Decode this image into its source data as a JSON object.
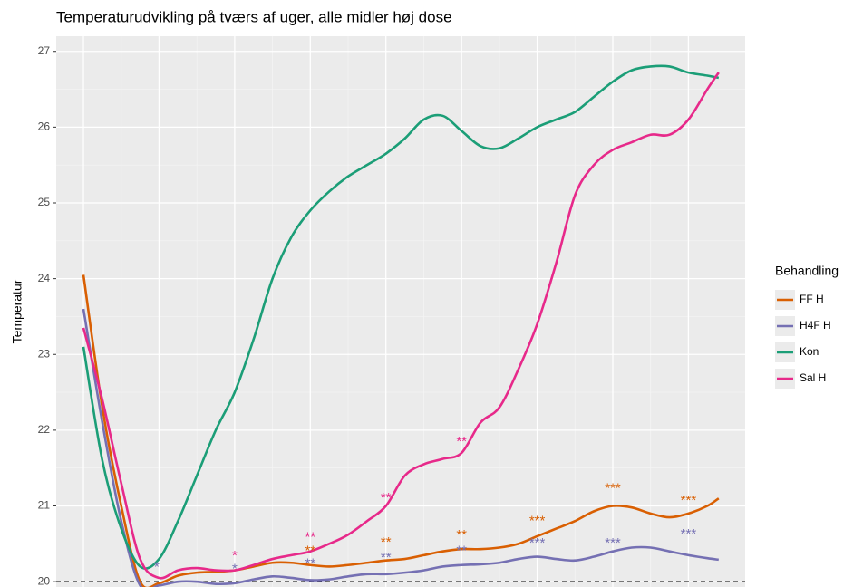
{
  "chart_data": {
    "type": "line",
    "title": "Temperaturudvikling på tværs af uger, alle midler høj dose",
    "ylabel": "Temperatur",
    "legend_title": "Behandling",
    "legend_position": "right",
    "grid": true,
    "hline": 20,
    "x": [
      0,
      0.25,
      0.5,
      0.75,
      1,
      1.25,
      1.5,
      1.75,
      2,
      2.25,
      2.5,
      2.75,
      3,
      3.25,
      3.5,
      3.75,
      4,
      4.25,
      4.5,
      4.75,
      5,
      5.25,
      5.5,
      5.75,
      6,
      6.25,
      6.5,
      6.75,
      7,
      7.25,
      7.5,
      7.75,
      8,
      8.25,
      8.4
    ],
    "xlim": [
      -0.36,
      8.75
    ],
    "xticks": [
      0,
      1,
      2,
      3,
      4,
      5,
      6,
      7,
      8
    ],
    "ylim": [
      19.93,
      27.2
    ],
    "yticks": [
      20,
      21,
      22,
      23,
      24,
      25,
      26,
      27
    ],
    "series": [
      {
        "name": "FF H",
        "color": "#d95f02",
        "values": [
          24.05,
          22.3,
          21.0,
          20.0,
          19.98,
          20.08,
          20.12,
          20.13,
          20.15,
          20.2,
          20.25,
          20.25,
          20.22,
          20.2,
          20.22,
          20.25,
          20.28,
          20.3,
          20.35,
          20.4,
          20.43,
          20.43,
          20.45,
          20.5,
          20.6,
          20.7,
          20.8,
          20.93,
          21.0,
          20.98,
          20.9,
          20.85,
          20.9,
          21.0,
          21.1
        ]
      },
      {
        "name": "H4F H",
        "color": "#7570b3",
        "values": [
          23.6,
          22.1,
          20.8,
          19.95,
          19.95,
          20.0,
          20.0,
          19.97,
          19.98,
          20.03,
          20.07,
          20.05,
          20.02,
          20.03,
          20.07,
          20.1,
          20.1,
          20.12,
          20.15,
          20.2,
          20.22,
          20.23,
          20.25,
          20.3,
          20.33,
          20.3,
          20.28,
          20.33,
          20.4,
          20.45,
          20.45,
          20.4,
          20.35,
          20.31,
          20.29
        ]
      },
      {
        "name": "Kon",
        "color": "#1b9e77",
        "values": [
          23.1,
          21.6,
          20.7,
          20.2,
          20.3,
          20.8,
          21.4,
          22.0,
          22.5,
          23.2,
          24.0,
          24.55,
          24.9,
          25.15,
          25.35,
          25.5,
          25.65,
          25.85,
          26.1,
          26.15,
          25.95,
          25.75,
          25.72,
          25.85,
          26.0,
          26.1,
          26.2,
          26.4,
          26.6,
          26.75,
          26.8,
          26.8,
          26.72,
          26.68,
          26.65
        ]
      },
      {
        "name": "Sal H",
        "color": "#e7298a",
        "values": [
          23.35,
          22.4,
          21.3,
          20.3,
          20.05,
          20.15,
          20.18,
          20.15,
          20.15,
          20.22,
          20.3,
          20.35,
          20.4,
          20.5,
          20.62,
          20.8,
          21.0,
          21.4,
          21.55,
          21.62,
          21.7,
          22.1,
          22.3,
          22.8,
          23.4,
          24.2,
          25.1,
          25.5,
          25.7,
          25.8,
          25.9,
          25.9,
          26.1,
          26.5,
          26.72
        ]
      }
    ],
    "annotations": [
      {
        "text": "*",
        "x": 0.97,
        "y": 20.22,
        "color": "#7570b3"
      },
      {
        "text": "*",
        "x": 2,
        "y": 20.37,
        "color": "#e7298a"
      },
      {
        "text": "*",
        "x": 2,
        "y": 20.2,
        "color": "#7570b3"
      },
      {
        "text": "**",
        "x": 3,
        "y": 20.62,
        "color": "#e7298a"
      },
      {
        "text": "**",
        "x": 3,
        "y": 20.44,
        "color": "#d95f02"
      },
      {
        "text": "**",
        "x": 3,
        "y": 20.27,
        "color": "#7570b3"
      },
      {
        "text": "**",
        "x": 4,
        "y": 21.14,
        "color": "#e7298a"
      },
      {
        "text": "**",
        "x": 4,
        "y": 20.55,
        "color": "#d95f02"
      },
      {
        "text": "**",
        "x": 4,
        "y": 20.35,
        "color": "#7570b3"
      },
      {
        "text": "**",
        "x": 5,
        "y": 21.88,
        "color": "#e7298a"
      },
      {
        "text": "**",
        "x": 5,
        "y": 20.65,
        "color": "#d95f02"
      },
      {
        "text": "**",
        "x": 5,
        "y": 20.44,
        "color": "#7570b3"
      },
      {
        "text": "***",
        "x": 6,
        "y": 20.83,
        "color": "#d95f02"
      },
      {
        "text": "***",
        "x": 6,
        "y": 20.54,
        "color": "#7570b3"
      },
      {
        "text": "***",
        "x": 7,
        "y": 21.26,
        "color": "#d95f02"
      },
      {
        "text": "***",
        "x": 7,
        "y": 20.54,
        "color": "#7570b3"
      },
      {
        "text": "***",
        "x": 8,
        "y": 21.1,
        "color": "#d95f02"
      },
      {
        "text": "***",
        "x": 8,
        "y": 20.66,
        "color": "#7570b3"
      }
    ]
  }
}
